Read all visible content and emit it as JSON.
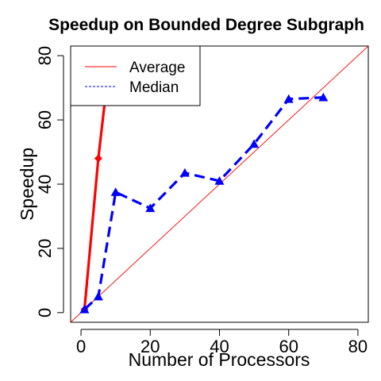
{
  "chart_data": {
    "type": "line",
    "title": "Speedup on Bounded Degree Subgraph",
    "xlabel": "Number of Processors",
    "ylabel": "Speedup",
    "xlim": [
      -3,
      83
    ],
    "ylim": [
      -3,
      83
    ],
    "x_ticks": [
      0,
      20,
      40,
      60,
      80
    ],
    "y_ticks": [
      0,
      20,
      40,
      60,
      80
    ],
    "legend_position": "top-left",
    "series": [
      {
        "name": "Average",
        "color": "#ff0000",
        "style": "solid",
        "marker": "diamond",
        "x": [
          1,
          5,
          10
        ],
        "y": [
          1,
          48,
          95
        ]
      },
      {
        "name": "Median",
        "color": "#0000ff",
        "style": "dashed",
        "marker": "triangle",
        "x": [
          1,
          5,
          10,
          20,
          30,
          40,
          50,
          60,
          70
        ],
        "y": [
          1,
          5,
          37.5,
          32.5,
          43.5,
          41,
          52.5,
          66.5,
          67
        ]
      }
    ],
    "reference_line": {
      "color": "#ff0000",
      "style": "solid",
      "x": [
        -3,
        83
      ],
      "y": [
        -3,
        83
      ]
    }
  }
}
